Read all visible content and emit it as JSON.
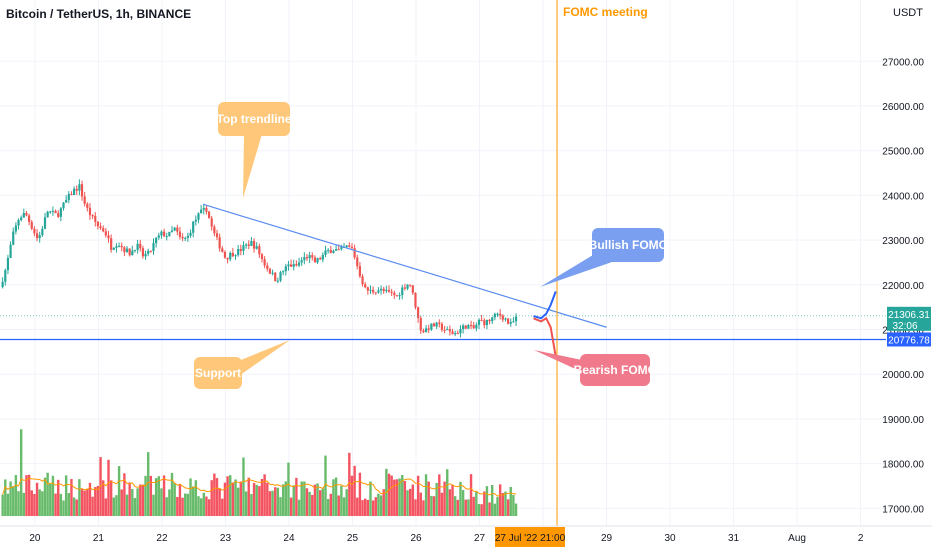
{
  "title": "Bitcoin / TetherUS, 1h, BINANCE",
  "currency": "USDT",
  "colors": {
    "up": "#26a69a",
    "down": "#ef5350",
    "vol_up": "#4caf50",
    "vol_down": "#f23645",
    "trendline": "#5b8def",
    "support": "#2962ff",
    "fomc_line": "#ff9800",
    "bullish": "#7b9ff0",
    "bearish": "#f07a8c",
    "label_box": "#ffc779",
    "ma": "#ff9800"
  },
  "annotations": {
    "fomc_label": "FOMC meeting",
    "top_trendline": "Top trendline",
    "support": "Support",
    "bullish": "Bullish FOMC",
    "bearish": "Bearish FOMC"
  },
  "price_badges": {
    "current_price": "21306.31",
    "countdown": "32:06",
    "support_price": "20776.78"
  },
  "time_cursor_label": "27 Jul '22   21:00",
  "chart_data": {
    "type": "candlestick",
    "title": "Bitcoin / TetherUS, 1h, BINANCE",
    "ylim": [
      16850,
      27700
    ],
    "y_ticks": [
      "27000.00",
      "26000.00",
      "25000.00",
      "24000.00",
      "23000.00",
      "22000.00",
      "21000.00",
      "20000.00",
      "19000.00",
      "18000.00",
      "17000.00"
    ],
    "y_tick_values": [
      27000,
      26000,
      25000,
      24000,
      23000,
      22000,
      21000,
      20000,
      19000,
      18000,
      17000
    ],
    "x_ticks": [
      "20",
      "21",
      "22",
      "23",
      "24",
      "25",
      "26",
      "27",
      "28",
      "29",
      "30",
      "31",
      "Aug",
      "2"
    ],
    "x_tick_days": [
      20,
      21,
      22,
      23,
      24,
      25,
      26,
      27,
      28,
      29,
      30,
      31,
      32,
      33
    ],
    "x_range_days": [
      19.45,
      33.4
    ],
    "close_path": [
      [
        19.45,
        21950
      ],
      [
        19.55,
        22400
      ],
      [
        19.65,
        23100
      ],
      [
        19.75,
        23500
      ],
      [
        19.85,
        23600
      ],
      [
        19.95,
        23300
      ],
      [
        20.05,
        23000
      ],
      [
        20.2,
        23650
      ],
      [
        20.35,
        23550
      ],
      [
        20.5,
        23900
      ],
      [
        20.6,
        24100
      ],
      [
        20.7,
        24200
      ],
      [
        20.8,
        23750
      ],
      [
        20.9,
        23500
      ],
      [
        21.0,
        23300
      ],
      [
        21.1,
        23200
      ],
      [
        21.2,
        22850
      ],
      [
        21.3,
        22950
      ],
      [
        21.4,
        22800
      ],
      [
        21.5,
        22700
      ],
      [
        21.6,
        22900
      ],
      [
        21.7,
        22650
      ],
      [
        21.8,
        22700
      ],
      [
        21.9,
        23000
      ],
      [
        22.0,
        23150
      ],
      [
        22.1,
        23100
      ],
      [
        22.2,
        23250
      ],
      [
        22.3,
        23000
      ],
      [
        22.4,
        23050
      ],
      [
        22.5,
        23400
      ],
      [
        22.6,
        23600
      ],
      [
        22.7,
        23700
      ],
      [
        22.8,
        23200
      ],
      [
        22.9,
        22900
      ],
      [
        23.0,
        22600
      ],
      [
        23.1,
        22700
      ],
      [
        23.2,
        22750
      ],
      [
        23.3,
        22850
      ],
      [
        23.4,
        22950
      ],
      [
        23.5,
        22800
      ],
      [
        23.6,
        22500
      ],
      [
        23.7,
        22300
      ],
      [
        23.8,
        22100
      ],
      [
        23.9,
        22300
      ],
      [
        24.0,
        22450
      ],
      [
        24.1,
        22400
      ],
      [
        24.2,
        22550
      ],
      [
        24.3,
        22650
      ],
      [
        24.4,
        22500
      ],
      [
        24.5,
        22600
      ],
      [
        24.6,
        22750
      ],
      [
        24.7,
        22800
      ],
      [
        24.8,
        22750
      ],
      [
        24.9,
        22850
      ],
      [
        25.0,
        22800
      ],
      [
        25.1,
        22300
      ],
      [
        25.2,
        21900
      ],
      [
        25.3,
        21850
      ],
      [
        25.4,
        21900
      ],
      [
        25.5,
        21850
      ],
      [
        25.6,
        21800
      ],
      [
        25.7,
        21750
      ],
      [
        25.8,
        21950
      ],
      [
        25.9,
        22050
      ],
      [
        26.0,
        21500
      ],
      [
        26.05,
        21100
      ],
      [
        26.1,
        20950
      ],
      [
        26.2,
        21050
      ],
      [
        26.3,
        21100
      ],
      [
        26.4,
        21050
      ],
      [
        26.5,
        20950
      ],
      [
        26.6,
        20900
      ],
      [
        26.7,
        21000
      ],
      [
        26.8,
        21100
      ],
      [
        26.9,
        21000
      ],
      [
        27.0,
        21200
      ],
      [
        27.1,
        21150
      ],
      [
        27.2,
        21250
      ],
      [
        27.3,
        21350
      ],
      [
        27.4,
        21250
      ],
      [
        27.45,
        21150
      ],
      [
        27.5,
        21100
      ],
      [
        27.55,
        21200
      ],
      [
        27.6,
        21300
      ]
    ],
    "annotations": {
      "fomc_meeting_day": 28.22,
      "top_trendline": [
        [
          22.65,
          23800
        ],
        [
          29.0,
          21050
        ]
      ],
      "support_level": 20776.78,
      "current_price": 21306.31,
      "bullish_path": [
        [
          27.85,
          21300
        ],
        [
          27.97,
          21250
        ],
        [
          28.05,
          21350
        ],
        [
          28.12,
          21550
        ],
        [
          28.2,
          21850
        ]
      ],
      "bearish_path": [
        [
          27.85,
          21250
        ],
        [
          27.97,
          21180
        ],
        [
          28.05,
          21250
        ],
        [
          28.12,
          21050
        ],
        [
          28.2,
          20400
        ]
      ]
    }
  }
}
